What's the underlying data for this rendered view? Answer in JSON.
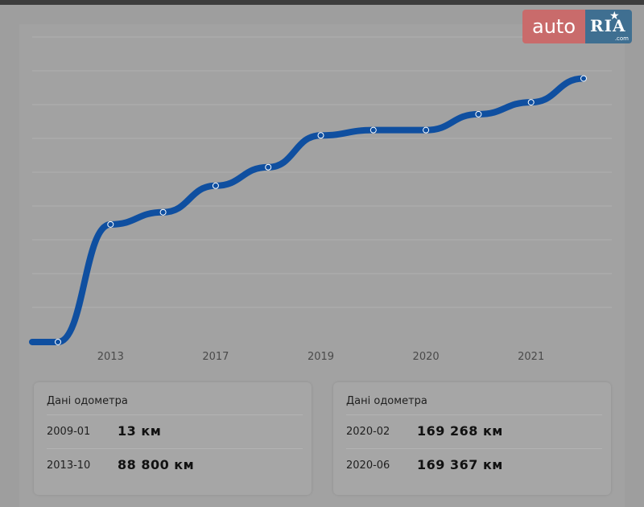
{
  "logo": {
    "auto": "auto",
    "ria": "RIA",
    "domain": ".com"
  },
  "colors": {
    "line": "#0f4fa0",
    "background": "#9e9e9e"
  },
  "chart_data": {
    "type": "line",
    "x_tick_labels": [
      "2013",
      "2017",
      "2019",
      "2020",
      "2021"
    ],
    "ylabel": "",
    "xlabel": "",
    "grid": true,
    "ylim": [
      0,
      240000
    ],
    "series": [
      {
        "values": [
          13,
          88800,
          98000,
          118000,
          132000,
          156000,
          160000,
          160000,
          172000,
          181000,
          199000
        ]
      }
    ]
  },
  "odometer_left": {
    "title": "Дані одометра",
    "rows": [
      {
        "date": "2009-01",
        "value": "13 км"
      },
      {
        "date": "2013-10",
        "value": "88 800 км"
      }
    ]
  },
  "odometer_right": {
    "title": "Дані одометра",
    "rows": [
      {
        "date": "2020-02",
        "value": "169 268 км"
      },
      {
        "date": "2020-06",
        "value": "169 367 км"
      }
    ]
  }
}
